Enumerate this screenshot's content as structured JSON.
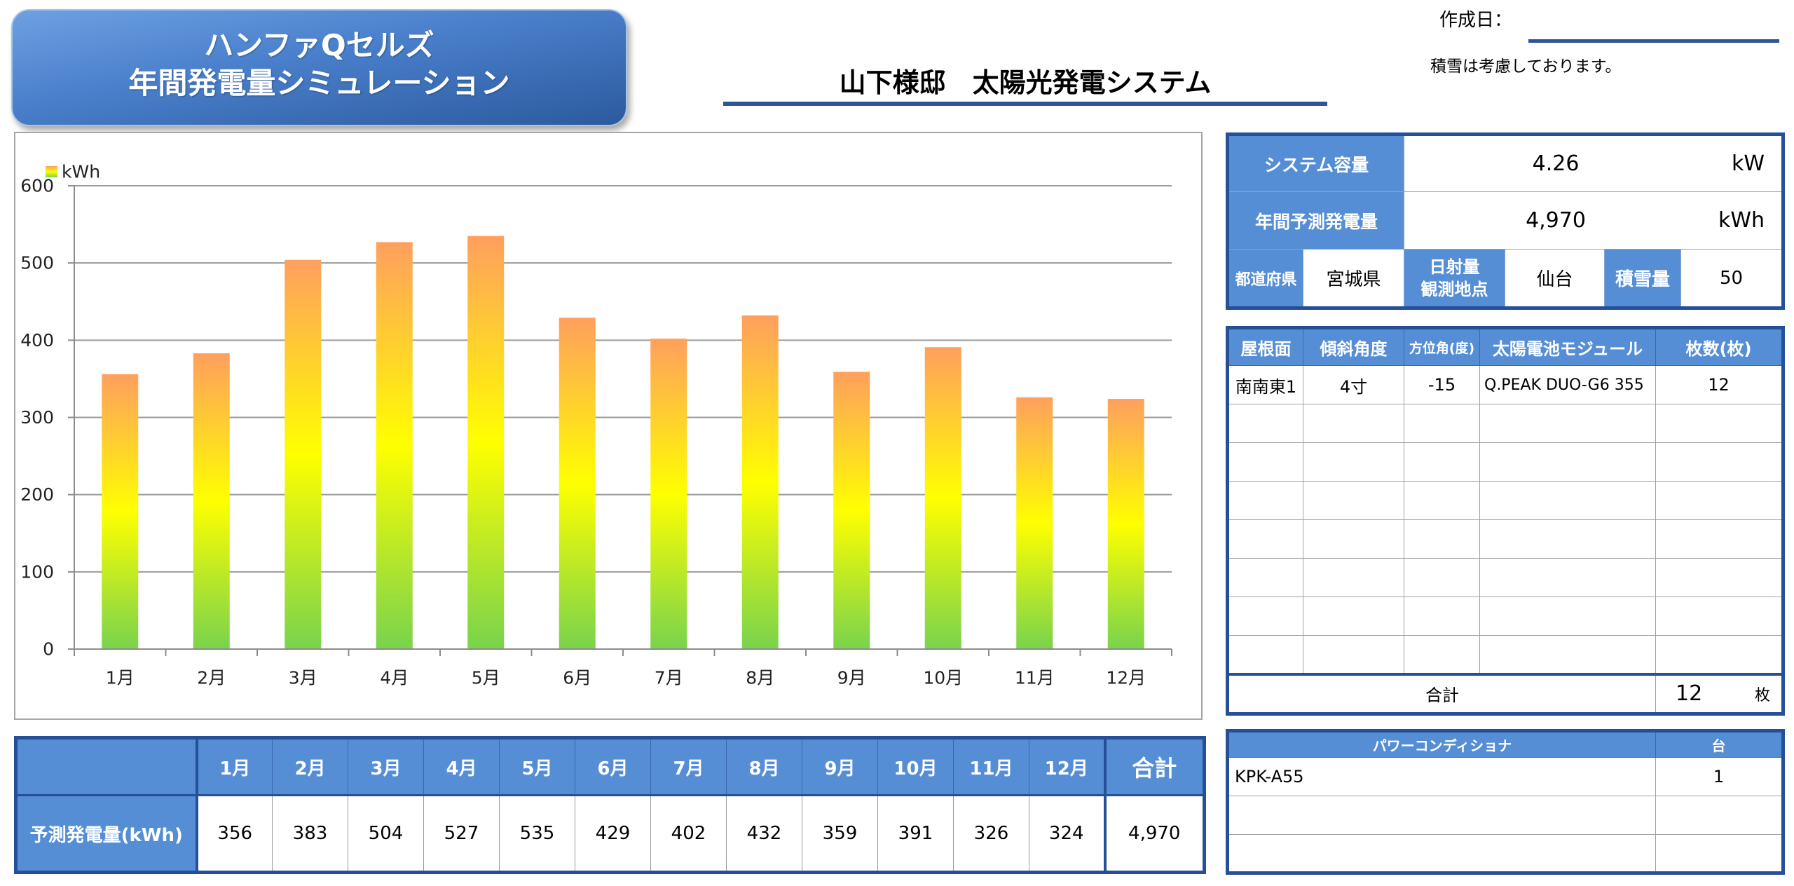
{
  "banner": {
    "line1": "ハンファQセルズ",
    "line2": "年間発電量シミュレーション"
  },
  "header": {
    "created_label": "作成日：",
    "snow_note": "積雪は考慮しております。",
    "page_title": "山下様邸　太陽光発電システム"
  },
  "chart_data": {
    "type": "bar",
    "categories": [
      "1月",
      "2月",
      "3月",
      "4月",
      "5月",
      "6月",
      "7月",
      "8月",
      "9月",
      "10月",
      "11月",
      "12月"
    ],
    "series": [
      {
        "name": "kWh",
        "values": [
          356,
          383,
          504,
          527,
          535,
          429,
          402,
          432,
          359,
          391,
          326,
          324
        ]
      }
    ],
    "ylim": [
      0,
      600
    ],
    "yticks": [
      0,
      100,
      200,
      300,
      400,
      500,
      600
    ],
    "grid": true,
    "legend": "top-left",
    "bar_gradient": [
      "#ff9f5e",
      "#ffff00",
      "#79d34d"
    ]
  },
  "monthly_table": {
    "row_label": "予測発電量(kWh)",
    "total_label": "合計",
    "total_value": "4,970"
  },
  "summary": {
    "capacity_label": "システム容量",
    "capacity_value": "4.26",
    "capacity_unit": "kW",
    "annual_label": "年間予測発電量",
    "annual_value": "4,970",
    "annual_unit": "kWh",
    "prefecture_label": "都道府県",
    "prefecture_value": "宮城県",
    "station_label_line1": "日射量",
    "station_label_line2": "観測地点",
    "station_value": "仙台",
    "snow_label": "積雪量",
    "snow_value": "50"
  },
  "modules": {
    "columns": [
      "屋根面",
      "傾斜角度",
      "方位角(度)",
      "太陽電池モジュール",
      "枚数(枚)"
    ],
    "rows": [
      [
        "南南東1",
        "4寸",
        "-15",
        "Q.PEAK DUO-G6 355",
        "12"
      ]
    ],
    "total_label": "合計",
    "total_count": "12",
    "total_unit": "枚"
  },
  "inverters": {
    "columns": [
      "パワーコンディショナ",
      "台"
    ],
    "rows": [
      [
        "KPK-A55",
        "1"
      ]
    ]
  },
  "colors": {
    "header_blue": "#558ed5",
    "border_blue": "#254f97",
    "title_underline": "#2f5597"
  }
}
